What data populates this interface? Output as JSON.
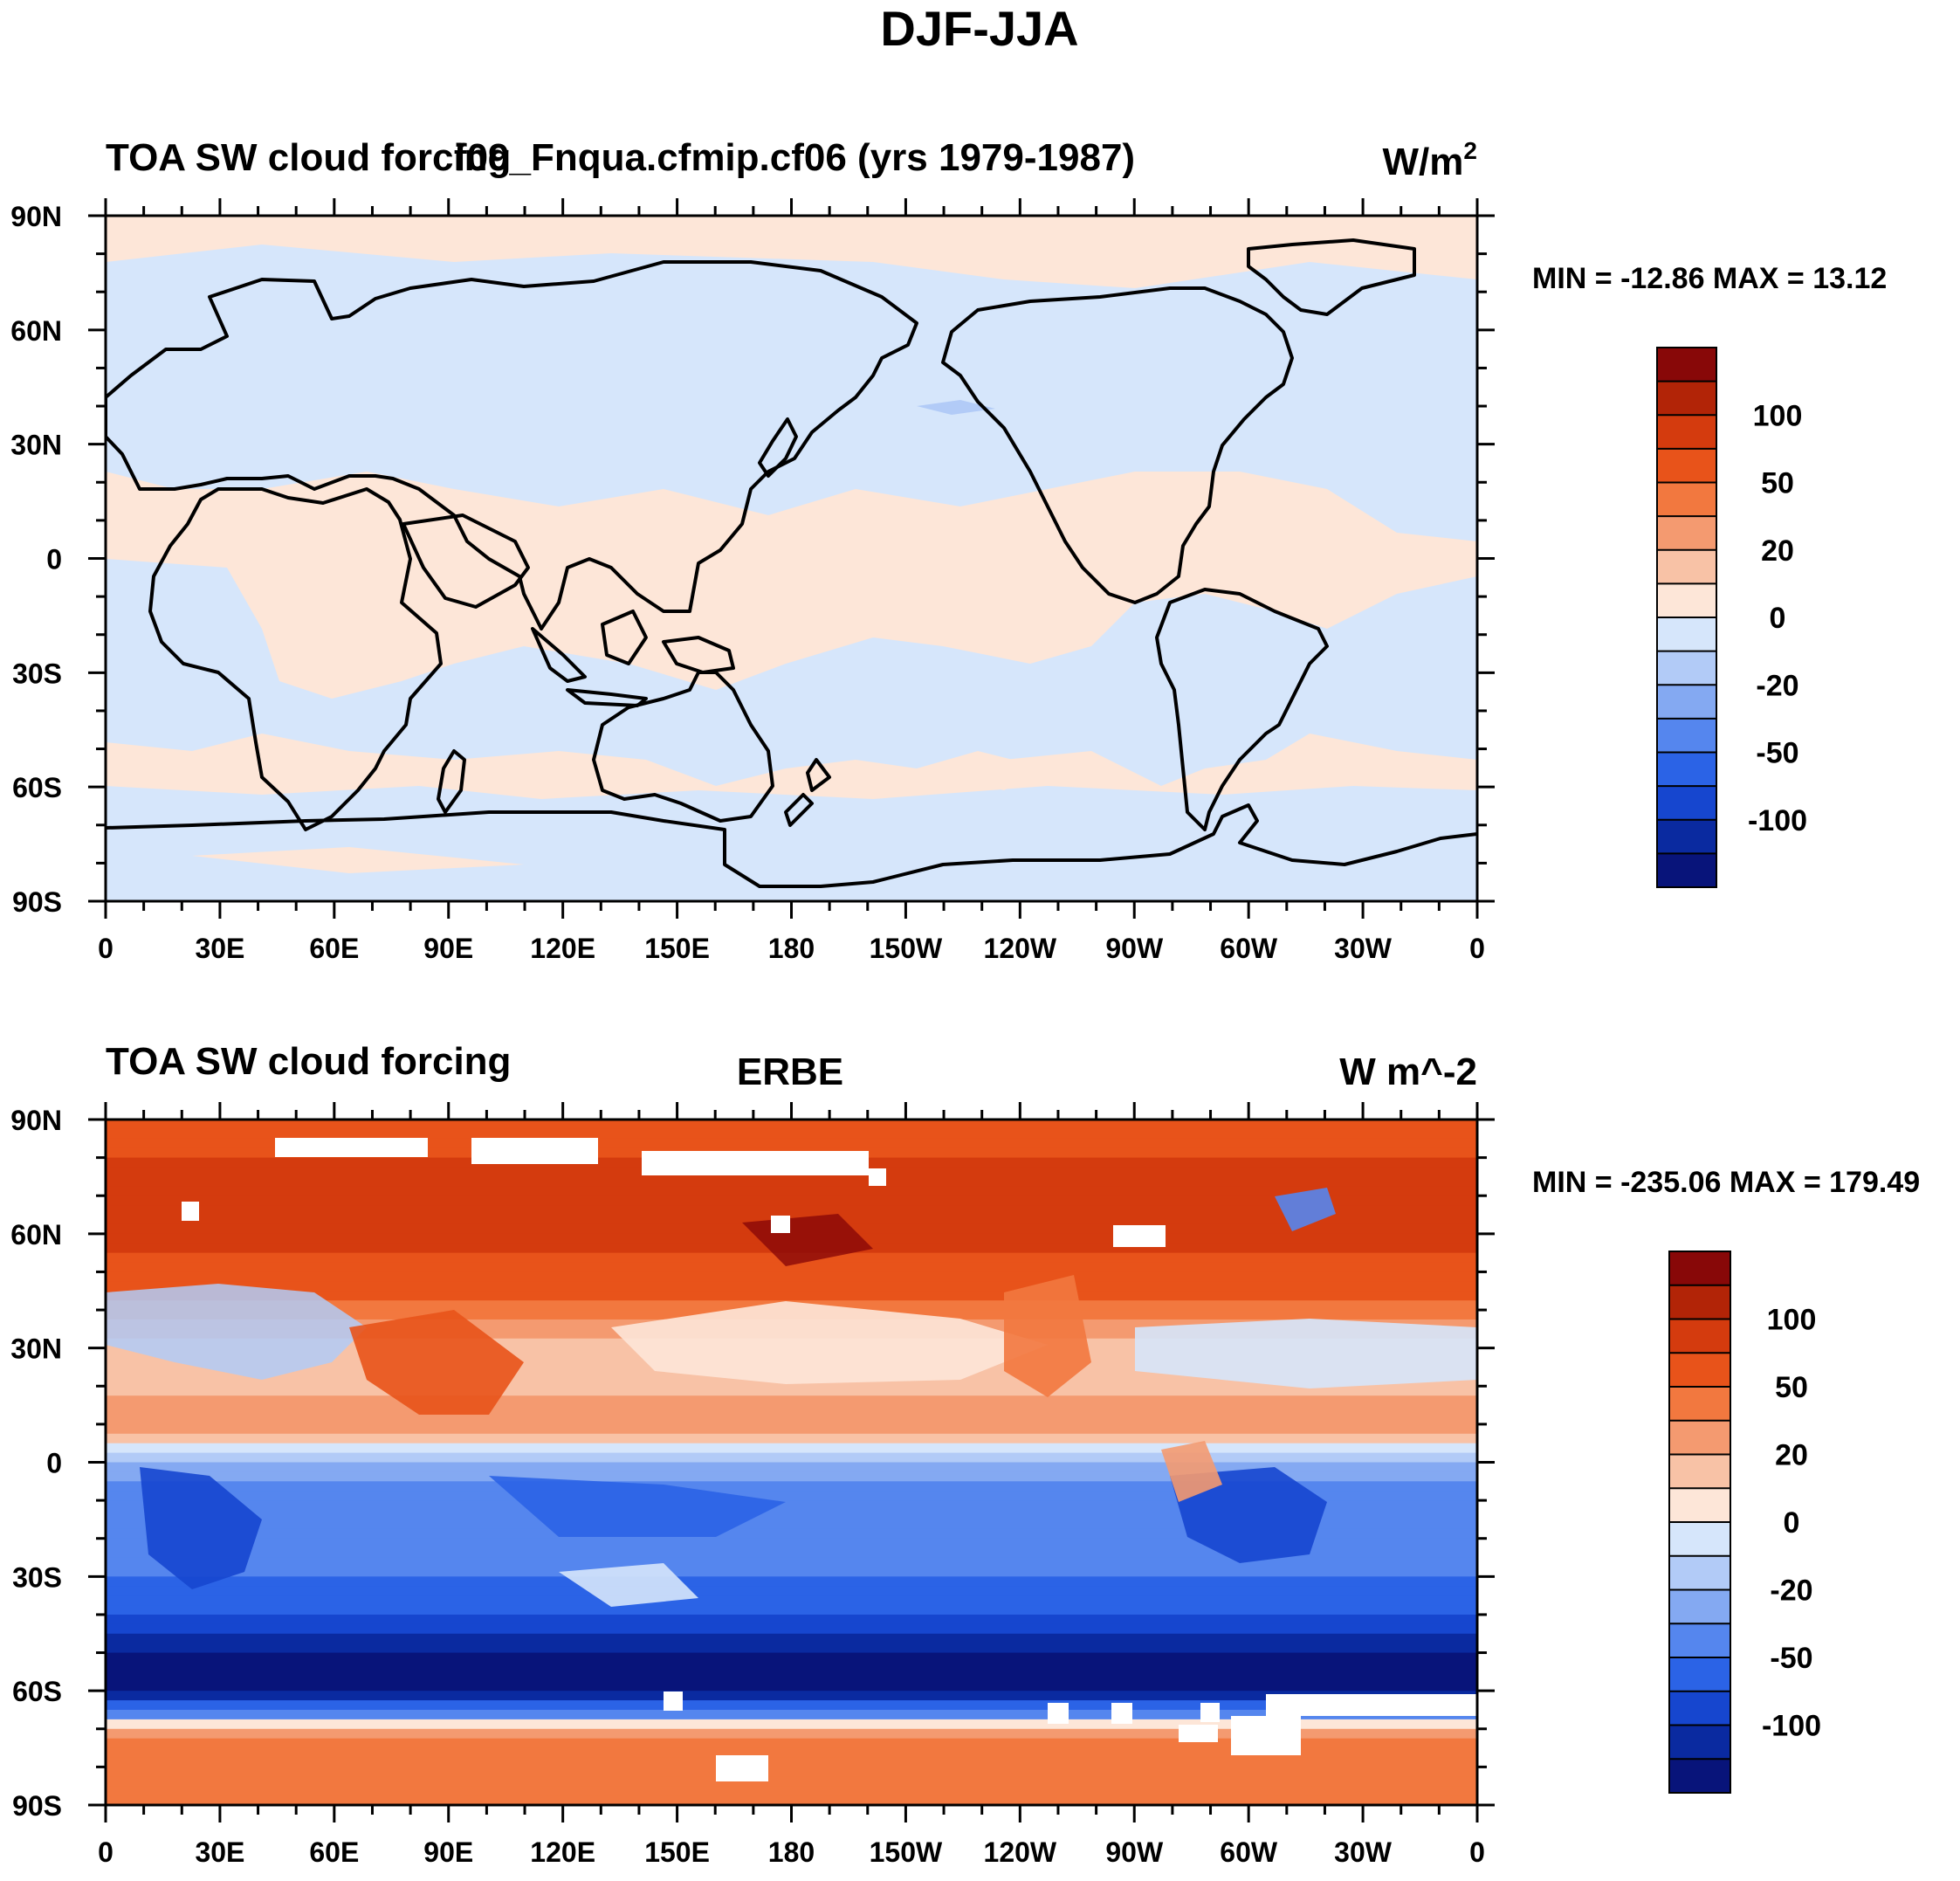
{
  "figure_title": "DJF-JJA",
  "colors": {
    "land_outline": "#000000",
    "missing_data": "#ffffff",
    "palette": [
      "#08147a",
      "#0a2aa0",
      "#1646cf",
      "#2b63e6",
      "#5586ee",
      "#84a9f2",
      "#b2cbf7",
      "#d6e6fb",
      "#fde6d8",
      "#f8c2a6",
      "#f49a70",
      "#f2783f",
      "#e8531a",
      "#d43b0e",
      "#b22407",
      "#880808"
    ]
  },
  "colorbar": {
    "labels": [
      "100",
      "50",
      "20",
      "0",
      "-20",
      "-50",
      "-100"
    ],
    "levels": [
      -150,
      -120,
      -100,
      -80,
      -50,
      -30,
      -20,
      -10,
      0,
      10,
      20,
      30,
      50,
      80,
      100,
      120,
      150
    ]
  },
  "chart_data": [
    {
      "type": "heatmap",
      "name": "model",
      "title_left": "TOA SW cloud forcing",
      "title_center": "f09_Fnqua.cfmip.cf06 (yrs 1979-1987)",
      "units": "W/m",
      "units_sup": "2",
      "min_max_text": "MIN = -12.86 MAX =  13.12",
      "min": -12.86,
      "max": 13.12,
      "xlim": [
        0,
        360
      ],
      "ylim": [
        -90,
        90
      ],
      "x_tick_labels": [
        "0",
        "30E",
        "60E",
        "90E",
        "120E",
        "150E",
        "180",
        "150W",
        "120W",
        "90W",
        "60W",
        "30W",
        "0"
      ],
      "y_tick_labels": [
        "90N",
        "60N",
        "30N",
        "0",
        "30S",
        "60S",
        "90S"
      ]
    },
    {
      "type": "heatmap",
      "name": "obs",
      "title_left": "TOA SW cloud forcing",
      "title_center": "ERBE",
      "units": "W m^-2",
      "min_max_text": "MIN = -235.06 MAX = 179.49",
      "min": -235.06,
      "max": 179.49,
      "xlim": [
        0,
        360
      ],
      "ylim": [
        -90,
        90
      ],
      "x_tick_labels": [
        "0",
        "30E",
        "60E",
        "90E",
        "120E",
        "150E",
        "180",
        "150W",
        "120W",
        "90W",
        "60W",
        "30W",
        "0"
      ],
      "y_tick_labels": [
        "90N",
        "60N",
        "30N",
        "0",
        "30S",
        "60S",
        "90S"
      ],
      "zonal_profile": {
        "lat": [
          -90,
          -80,
          -70,
          -60,
          -50,
          -40,
          -30,
          -20,
          -10,
          0,
          10,
          20,
          30,
          40,
          50,
          60,
          70,
          80,
          90
        ],
        "value": [
          30,
          40,
          25,
          -130,
          -120,
          -80,
          -50,
          -40,
          -40,
          -20,
          30,
          15,
          10,
          40,
          70,
          90,
          95,
          80,
          60
        ]
      }
    }
  ]
}
